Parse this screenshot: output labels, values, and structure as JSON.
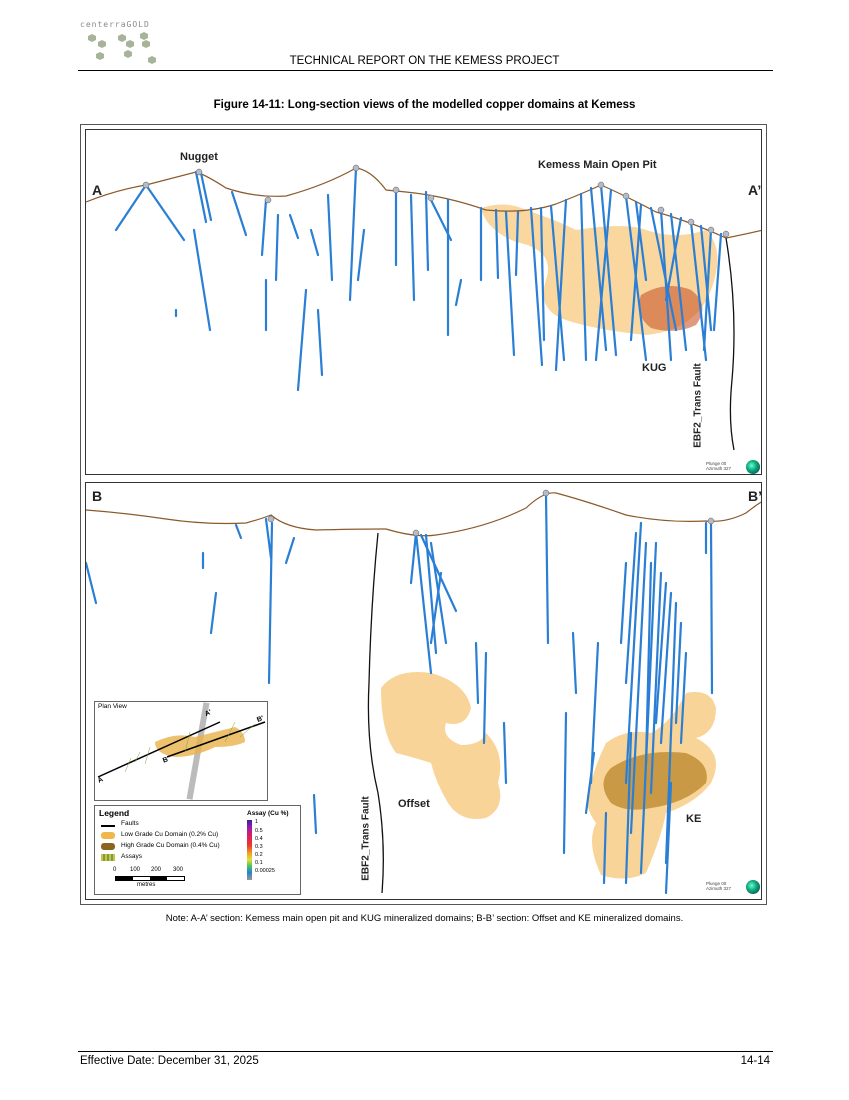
{
  "header": {
    "logo_text": "centerraGOLD",
    "report_title": "TECHNICAL REPORT ON THE KEMESS PROJECT"
  },
  "figure": {
    "caption": "Figure 14-11: Long-section views of the modelled copper domains at Kemess",
    "section_a": {
      "start_label": "A",
      "end_label": "A’",
      "nugget_label": "Nugget",
      "pit_label": "Kemess Main Open Pit",
      "kug_label": "KUG",
      "fault_label": "EBF2_Trans Fault",
      "plunge_text": "Plunge 00",
      "azimuth_text": "Azimuth 327"
    },
    "section_b": {
      "start_label": "B",
      "end_label": "B’",
      "offset_label": "Offset",
      "ke_label": "KE",
      "fault_label": "EBF2_Trans Fault",
      "plunge_text": "Plunge 00",
      "azimuth_text": "Azimuth 327"
    },
    "plan_view": {
      "title": "Plan View",
      "label_a": "A",
      "label_a_prime": "A'",
      "label_b": "B",
      "label_b_prime": "B'"
    },
    "legend": {
      "title": "Legend",
      "items": [
        "Faults",
        "Low Grade Cu Domain (0.2% Cu)",
        "High Grade Cu Domain (0.4% Cu)",
        "Assays"
      ],
      "scale_ticks": [
        "0",
        "100",
        "200",
        "300"
      ],
      "scale_unit": "metres",
      "assay_title": "Assay (Cu %)",
      "assay_values": [
        "1",
        "0.5",
        "0.4",
        "0.3",
        "0.2",
        "0.1",
        "0.00025"
      ]
    },
    "colors": {
      "topography": "#8b5a2b",
      "drillhole": "#2a7fd4",
      "low_grade": "#f7c97e",
      "high_grade": "#b8862b"
    }
  },
  "note": "Note: A-A’ section: Kemess main open pit and KUG mineralized domains; B-B’ section: Offset and KE mineralized domains.",
  "footer": {
    "effective_date": "Effective Date: December 31, 2025",
    "page_number": "14-14"
  }
}
